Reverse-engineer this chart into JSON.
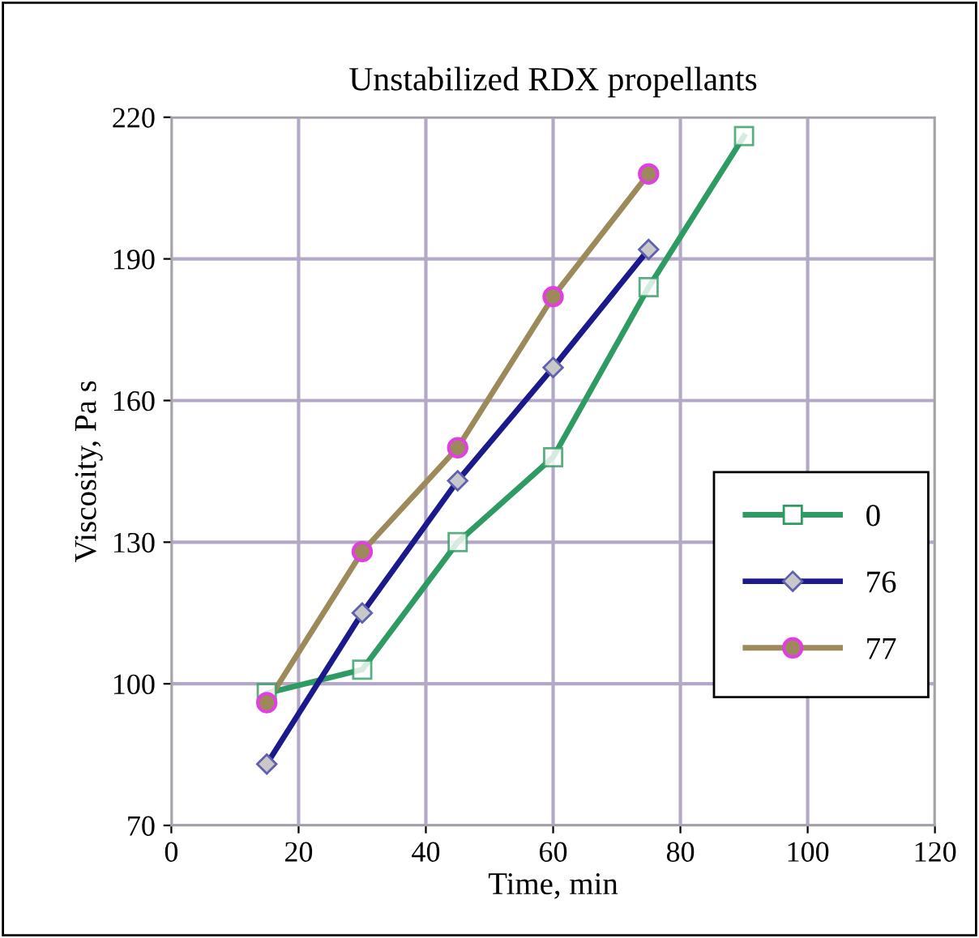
{
  "chart_data": {
    "type": "line",
    "title": "Unstabilized RDX propellants",
    "xlabel": "Time, min",
    "ylabel": "Viscosity, Pa s",
    "x": [
      15,
      30,
      45,
      60,
      75
    ],
    "series": [
      {
        "name": "0",
        "color": "#2e9b62",
        "marker": "square",
        "x": [
          15,
          30,
          45,
          60,
          75,
          90
        ],
        "values": [
          98,
          103,
          130,
          148,
          184,
          216
        ]
      },
      {
        "name": "76",
        "color": "#1a1a8c",
        "marker": "diamond",
        "values": [
          83,
          115,
          143,
          167,
          192
        ]
      },
      {
        "name": "77",
        "color": "#9c8a5a",
        "marker": "circle",
        "values": [
          96,
          128,
          150,
          182,
          208
        ]
      }
    ],
    "xlim": [
      0,
      120
    ],
    "xticks": [
      0,
      20,
      40,
      60,
      80,
      100,
      120
    ],
    "ylim": [
      70,
      220
    ],
    "yticks": [
      70,
      100,
      130,
      160,
      190,
      220
    ],
    "grid": true,
    "legend": "right"
  }
}
